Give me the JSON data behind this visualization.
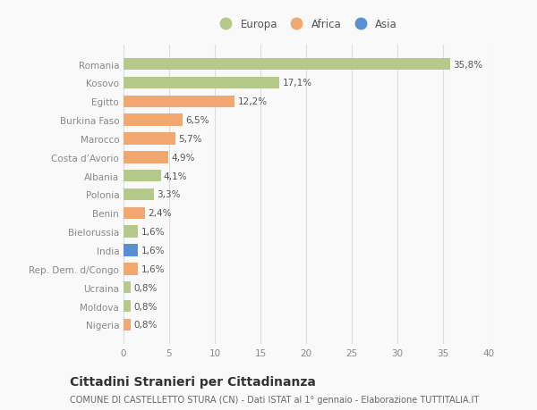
{
  "categories": [
    "Romania",
    "Kosovo",
    "Egitto",
    "Burkina Faso",
    "Marocco",
    "Costa d’Avorio",
    "Albania",
    "Polonia",
    "Benin",
    "Bielorussia",
    "India",
    "Rep. Dem. d/Congo",
    "Ucraina",
    "Moldova",
    "Nigeria"
  ],
  "values": [
    35.8,
    17.1,
    12.2,
    6.5,
    5.7,
    4.9,
    4.1,
    3.3,
    2.4,
    1.6,
    1.6,
    1.6,
    0.8,
    0.8,
    0.8
  ],
  "labels": [
    "35,8%",
    "17,1%",
    "12,2%",
    "6,5%",
    "5,7%",
    "4,9%",
    "4,1%",
    "3,3%",
    "2,4%",
    "1,6%",
    "1,6%",
    "1,6%",
    "0,8%",
    "0,8%",
    "0,8%"
  ],
  "continents": [
    "Europa",
    "Europa",
    "Africa",
    "Africa",
    "Africa",
    "Africa",
    "Europa",
    "Europa",
    "Africa",
    "Europa",
    "Asia",
    "Africa",
    "Europa",
    "Europa",
    "Africa"
  ],
  "colors": {
    "Europa": "#b5c98a",
    "Africa": "#f0a870",
    "Asia": "#5b8fd4"
  },
  "xlim": [
    0,
    40
  ],
  "xticks": [
    0,
    5,
    10,
    15,
    20,
    25,
    30,
    35,
    40
  ],
  "title": "Cittadini Stranieri per Cittadinanza",
  "subtitle": "COMUNE DI CASTELLETTO STURA (CN) - Dati ISTAT al 1° gennaio - Elaborazione TUTTITALIA.IT",
  "bg_color": "#f9f9f9",
  "grid_color": "#dddddd",
  "bar_height": 0.65,
  "label_fontsize": 7.5,
  "tick_fontsize": 7.5,
  "ytick_fontsize": 7.5,
  "title_fontsize": 10,
  "subtitle_fontsize": 7,
  "legend_fontsize": 8.5
}
